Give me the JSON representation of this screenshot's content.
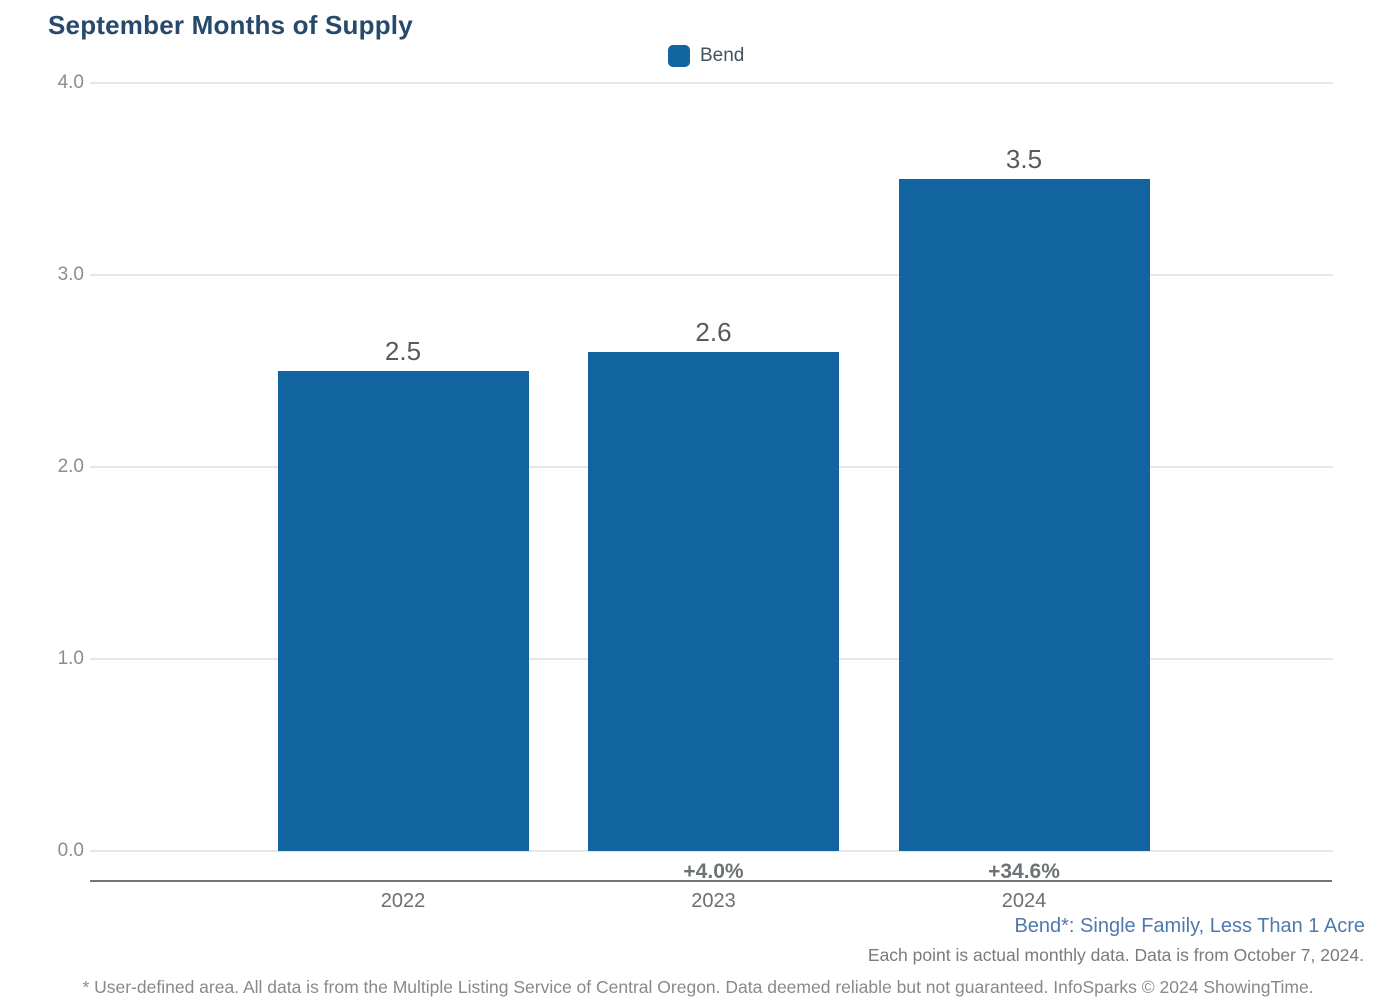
{
  "title": "September Months of Supply",
  "legend": {
    "items": [
      {
        "label": "Bend",
        "color": "#1264a0"
      }
    ]
  },
  "chart_data": {
    "type": "bar",
    "title": "September Months of Supply",
    "series_name": "Bend",
    "categories": [
      "2022",
      "2023",
      "2024"
    ],
    "values": [
      2.5,
      2.6,
      3.5
    ],
    "value_labels": [
      "2.5",
      "2.6",
      "3.5"
    ],
    "pct_change_labels": [
      "",
      "+4.0%",
      "+34.6%"
    ],
    "xlabel": "",
    "ylabel": "",
    "ylim": [
      0.0,
      4.0
    ],
    "yticks": [
      0.0,
      1.0,
      2.0,
      3.0,
      4.0
    ],
    "ytick_labels": [
      "0.0",
      "1.0",
      "2.0",
      "3.0",
      "4.0"
    ],
    "grid": "horizontal",
    "legend_position": "top-center",
    "bar_color": "#1264a0"
  },
  "footnotes": {
    "series_definition": "Bend*: Single Family, Less Than 1 Acre",
    "data_note": "Each point is actual monthly data. Data is from October 7, 2024.",
    "disclaimer": "* User-defined area. All data is from the Multiple Listing Service of Central Oregon. Data deemed reliable but not guaranteed. InfoSparks © 2024 ShowingTime."
  },
  "colors": {
    "bar": "#1264a0",
    "title": "#27496b",
    "gridline": "#e7e7e7",
    "axis_line": "#757575",
    "tick_label": "#8c8c8c",
    "value_label": "#565b5f",
    "pct_label": "#6d7275",
    "year_label": "#6e6e6e",
    "definition_text": "#4e79ae",
    "note_text": "#7b7b7b",
    "disclaimer_text": "#898989"
  }
}
